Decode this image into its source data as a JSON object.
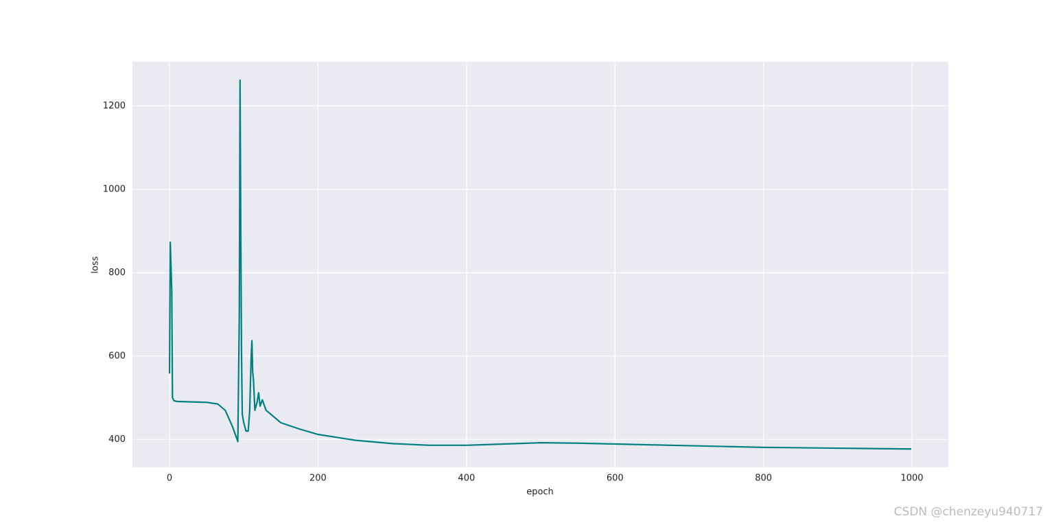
{
  "chart_data": {
    "type": "line",
    "xlabel": "epoch",
    "ylabel": "loss",
    "x": [
      0,
      1,
      3,
      4,
      6,
      10,
      30,
      50,
      65,
      75,
      85,
      92,
      94,
      95,
      96,
      97,
      98,
      100,
      103,
      106,
      108,
      110,
      111,
      112,
      113,
      115,
      118,
      120,
      122,
      125,
      130,
      140,
      150,
      175,
      200,
      250,
      300,
      350,
      400,
      450,
      500,
      550,
      600,
      700,
      800,
      900,
      999
    ],
    "values": [
      558,
      873,
      760,
      500,
      493,
      491,
      490,
      489,
      485,
      470,
      430,
      395,
      700,
      1262,
      900,
      600,
      460,
      440,
      420,
      420,
      470,
      600,
      637,
      560,
      545,
      470,
      490,
      512,
      480,
      495,
      470,
      455,
      440,
      425,
      412,
      398,
      390,
      386,
      386,
      389,
      392,
      391,
      389,
      385,
      381,
      379,
      377
    ],
    "color": "#008080",
    "xlim": [
      -49.95,
      1048.95
    ],
    "ylim": [
      333,
      1306
    ],
    "xticks": [
      0,
      200,
      400,
      600,
      800,
      1000
    ],
    "yticks": [
      400,
      600,
      800,
      1000,
      1200
    ],
    "grid": true
  },
  "watermark": "CSDN @chenzeyu940717"
}
